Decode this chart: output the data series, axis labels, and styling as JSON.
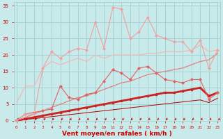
{
  "x": [
    0,
    1,
    2,
    3,
    4,
    5,
    6,
    7,
    8,
    9,
    10,
    11,
    12,
    13,
    14,
    15,
    16,
    17,
    18,
    19,
    20,
    21,
    22,
    23
  ],
  "line_top_y": [
    0,
    2,
    2,
    16,
    21,
    19,
    21,
    22,
    21.5,
    30,
    22,
    34.5,
    34,
    25,
    27,
    31.5,
    26,
    25,
    24,
    24,
    21,
    24.5,
    16,
    21.5
  ],
  "line_mid_y": [
    0,
    2,
    2.5,
    3,
    3.5,
    10.5,
    7,
    6.5,
    8,
    8.5,
    12,
    15.5,
    14.5,
    12.5,
    16,
    16.5,
    14.5,
    12.5,
    12,
    11.5,
    12.5,
    12.5,
    6.5,
    8.5
  ],
  "line_slope1_y": [
    5.5,
    10.5,
    10.5,
    16,
    18,
    17,
    18,
    19,
    18,
    20,
    19,
    20,
    20,
    20,
    20,
    20.5,
    20.5,
    21,
    21,
    21,
    21.5,
    23,
    21,
    21.5
  ],
  "line_slope2_y": [
    0,
    1,
    2,
    3,
    4,
    5,
    6,
    7,
    7.5,
    8.5,
    9.5,
    10.5,
    11.5,
    12,
    13,
    14,
    14.5,
    15,
    15.5,
    16,
    17,
    18,
    18.5,
    20.5
  ],
  "line_bot_y": [
    0,
    0.5,
    1,
    1.5,
    2,
    2.5,
    3,
    3.5,
    4,
    4.5,
    5,
    5.5,
    6,
    6.5,
    7,
    7.5,
    8,
    8.5,
    8.5,
    9,
    9.5,
    10,
    7.5,
    8.5
  ],
  "line_base_y": [
    0,
    0.3,
    0.6,
    0.9,
    1.2,
    1.5,
    1.8,
    2.1,
    2.4,
    2.7,
    3.0,
    3.3,
    3.6,
    3.9,
    4.2,
    4.5,
    4.8,
    5.1,
    5.4,
    5.7,
    6.0,
    6.3,
    5.5,
    6.8
  ],
  "color_top": "#f0a0a0",
  "color_mid": "#e06060",
  "color_slope1": "#f0b8b8",
  "color_slope2": "#e08080",
  "color_bot": "#cc2222",
  "color_base": "#aa0000",
  "bg_color": "#c8eaea",
  "grid_color": "#a0d0d0",
  "text_color": "#cc0000",
  "xlabel": "Vent moyen/en rafales ( km/h )",
  "ylim": [
    0,
    36
  ],
  "xlim": [
    0,
    23
  ],
  "yticks": [
    0,
    5,
    10,
    15,
    20,
    25,
    30,
    35
  ]
}
